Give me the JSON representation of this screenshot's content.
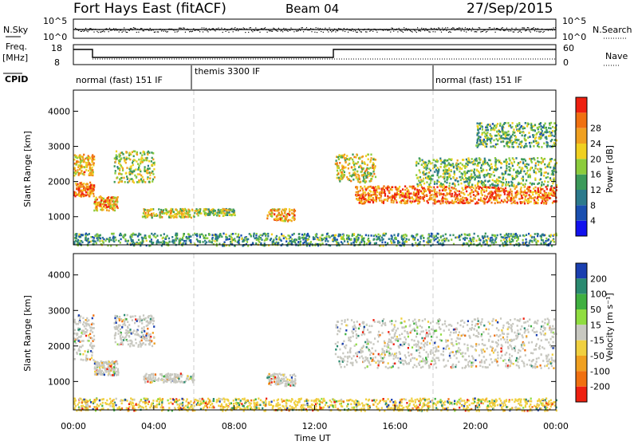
{
  "header": {
    "radar": "Fort Hays East (fitACF)",
    "beam": "Beam 04",
    "date": "27/Sep/2015"
  },
  "top_panels": {
    "nsky_label": "N.Sky",
    "nsky_ticks": [
      "10^5",
      "10^0"
    ],
    "nsearch_label": "N.Search",
    "nsearch_ticks": [
      "10^5",
      "10^0"
    ],
    "freq_label": "Freq.",
    "freq_unit": "[MHz]",
    "freq_ticks": [
      "18",
      "8"
    ],
    "nave_label": "Nave",
    "nave_ticks": [
      "60",
      "0"
    ],
    "cpid_label": "CPID",
    "cpid_segments": [
      {
        "label": "normal (fast) 151 IF",
        "start_h": 0,
        "end_h": 6
      },
      {
        "label": "themis 3300 IF",
        "start_h": 6,
        "end_h": 18
      },
      {
        "label": "normal (fast) 151 IF",
        "start_h": 18,
        "end_h": 24
      }
    ]
  },
  "chart_data": [
    {
      "type": "heatmap",
      "name": "power",
      "ylabel": "Slant Range [km]",
      "xlabel": "",
      "xlim": [
        0,
        24
      ],
      "ylim": [
        200,
        4600
      ],
      "yticks": [
        "1000",
        "2000",
        "3000",
        "4000"
      ],
      "colorbar_label": "Power [dB]",
      "colorbar_ticks": [
        "4",
        "8",
        "12",
        "16",
        "20",
        "24",
        "28"
      ],
      "colorbar_colors": [
        "#1111ee",
        "#1a4fb0",
        "#2c7a8c",
        "#3c9a5a",
        "#8ccc3c",
        "#f0d020",
        "#f0a020",
        "#f07010",
        "#ee2010"
      ],
      "scatter_regions": [
        {
          "t0": 0.0,
          "t1": 1.0,
          "r0": 1600,
          "r1": 2000,
          "level": 0.85
        },
        {
          "t0": 0.0,
          "t1": 1.0,
          "r0": 2200,
          "r1": 2800,
          "level": 0.7
        },
        {
          "t0": 1.0,
          "t1": 2.2,
          "r0": 1200,
          "r1": 1600,
          "level": 0.75
        },
        {
          "t0": 2.0,
          "t1": 4.0,
          "r0": 2000,
          "r1": 2900,
          "level": 0.55
        },
        {
          "t0": 3.4,
          "t1": 6.0,
          "r0": 1000,
          "r1": 1250,
          "level": 0.6
        },
        {
          "t0": 6.0,
          "t1": 8.0,
          "r0": 1050,
          "r1": 1250,
          "level": 0.5
        },
        {
          "t0": 9.6,
          "t1": 11.0,
          "r0": 900,
          "r1": 1250,
          "level": 0.75
        },
        {
          "t0": 13.0,
          "t1": 15.0,
          "r0": 2000,
          "r1": 2800,
          "level": 0.6
        },
        {
          "t0": 14.0,
          "t1": 24.0,
          "r0": 1400,
          "r1": 1900,
          "level": 0.85
        },
        {
          "t0": 17.0,
          "t1": 24.0,
          "r0": 1900,
          "r1": 2700,
          "level": 0.45
        },
        {
          "t0": 20.0,
          "t1": 24.0,
          "r0": 3000,
          "r1": 3700,
          "level": 0.4
        },
        {
          "t0": 0.0,
          "t1": 24.0,
          "r0": 200,
          "r1": 550,
          "level": 0.35
        }
      ]
    },
    {
      "type": "heatmap",
      "name": "velocity",
      "ylabel": "Slant Range [km]",
      "xlabel": "Time UT",
      "xlim": [
        0,
        24
      ],
      "ylim": [
        200,
        4600
      ],
      "yticks": [
        "1000",
        "2000",
        "3000",
        "4000"
      ],
      "xticks": [
        "00:00",
        "04:00",
        "08:00",
        "12:00",
        "16:00",
        "20:00",
        "00:00"
      ],
      "colorbar_label": "Velocity [m s⁻¹]",
      "colorbar_ticks": [
        "200",
        "100",
        "50",
        "15",
        "-15",
        "-50",
        "-100",
        "-200"
      ],
      "colorbar_colors": [
        "#1a3fb0",
        "#2a8a70",
        "#40b040",
        "#90dd40",
        "#c8c8c0",
        "#f0d040",
        "#f0a020",
        "#f07010",
        "#ee2010"
      ],
      "scatter_regions": [
        {
          "t0": 0.0,
          "t1": 1.0,
          "r0": 1600,
          "r1": 2900,
          "level": 0.5
        },
        {
          "t0": 1.0,
          "t1": 2.2,
          "r0": 1200,
          "r1": 1600,
          "level": 0.5
        },
        {
          "t0": 2.0,
          "t1": 4.0,
          "r0": 2000,
          "r1": 2900,
          "level": 0.5
        },
        {
          "t0": 3.4,
          "t1": 6.0,
          "r0": 1000,
          "r1": 1250,
          "level": 0.3
        },
        {
          "t0": 9.6,
          "t1": 11.0,
          "r0": 900,
          "r1": 1250,
          "level": 0.5
        },
        {
          "t0": 13.0,
          "t1": 24.0,
          "r0": 1400,
          "r1": 2800,
          "level": 0.5
        },
        {
          "t0": 0.0,
          "t1": 24.0,
          "r0": 200,
          "r1": 550,
          "level": 0.6
        }
      ]
    }
  ]
}
